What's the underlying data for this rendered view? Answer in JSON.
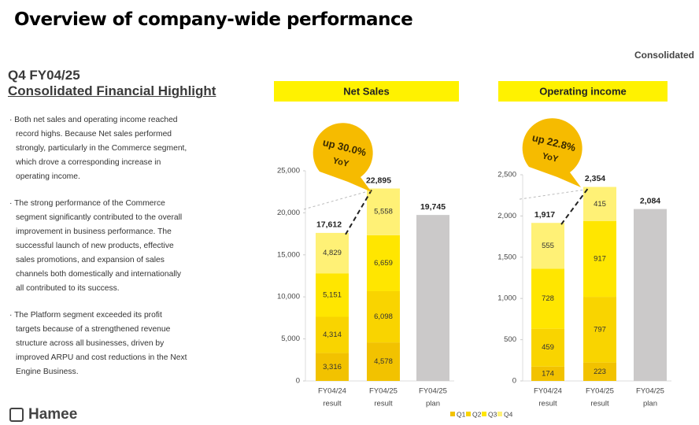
{
  "title": "Overview of company-wide performance",
  "scope": "Consolidated",
  "heading": {
    "line1": "Q4 FY04/25",
    "line2": "Consolidated Financial Highlight"
  },
  "bullets": [
    "Both net sales and operating income reached record highs. Because Net sales performed strongly, particularly in the Commerce segment, which drove a corresponding increase in operating income.",
    "The strong performance of the Commerce segment significantly contributed to the overall improvement in business performance. The successful launch of new products, effective sales promotions, and expansion of sales channels both domestically and internationally all contributed to its success.",
    "The Platform segment exceeded its profit targets because of a strengthened revenue structure across all businesses, driven by improved ARPU and cost reductions in the Next Engine Business."
  ],
  "logo": "Hamee",
  "chart_data": [
    {
      "type": "stacked_bar",
      "title": "Net Sales",
      "categories": [
        [
          "FY04/24",
          "result"
        ],
        [
          "FY04/25",
          "result"
        ],
        [
          "FY04/25",
          "plan"
        ]
      ],
      "series": [
        {
          "name": "Q1",
          "color": "#f2c200",
          "values": [
            3316,
            4578,
            null
          ],
          "value_labels": [
            "3,316",
            "4,578",
            null
          ]
        },
        {
          "name": "Q2",
          "color": "#f9d400",
          "values": [
            4314,
            6098,
            null
          ],
          "value_labels": [
            "4,314",
            "6,098",
            null
          ]
        },
        {
          "name": "Q3",
          "color": "#ffe600",
          "values": [
            5151,
            6659,
            null
          ],
          "value_labels": [
            "5,151",
            "6,659",
            null
          ]
        },
        {
          "name": "Q4",
          "color": "#fff176",
          "values": [
            4829,
            5558,
            null
          ],
          "value_labels": [
            "4,829",
            "5,558",
            null
          ]
        }
      ],
      "totals": {
        "values": [
          17612,
          22895,
          19745
        ],
        "value_labels": [
          "17,612",
          "22,895",
          "19,745"
        ]
      },
      "plan_color": "#cbc9c9",
      "annotation": {
        "text": "up 30.0%",
        "sub": "YoY"
      },
      "ylim": [
        0,
        25000
      ],
      "yticks": [
        0,
        {
          "value": 5000,
          "label": "5,000"
        },
        {
          "value": 10000,
          "label": "10,000"
        },
        {
          "value": 15000,
          "label": "15,000"
        },
        {
          "value": 20000,
          "label": "20,000"
        },
        {
          "value": 25000,
          "label": "25,000"
        }
      ]
    },
    {
      "type": "stacked_bar",
      "title": "Operating income",
      "categories": [
        [
          "FY04/24",
          "result"
        ],
        [
          "FY04/25",
          "result"
        ],
        [
          "FY04/25",
          "plan"
        ]
      ],
      "series": [
        {
          "name": "Q1",
          "color": "#f2c200",
          "values": [
            174,
            223,
            null
          ]
        },
        {
          "name": "Q2",
          "color": "#f9d400",
          "values": [
            459,
            797,
            null
          ]
        },
        {
          "name": "Q3",
          "color": "#ffe600",
          "values": [
            728,
            917,
            null
          ]
        },
        {
          "name": "Q4",
          "color": "#fff176",
          "values": [
            555,
            415,
            null
          ]
        }
      ],
      "totals": {
        "values": [
          1917,
          2354,
          2084
        ],
        "value_labels": [
          "1,917",
          "2,354",
          "2,084"
        ]
      },
      "plan_color": "#cbc9c9",
      "annotation": {
        "text": "up 22.8%",
        "sub": "YoY"
      },
      "ylim": [
        0,
        2500
      ],
      "yticks": [
        0,
        500,
        {
          "value": 1000,
          "label": "1,000"
        },
        {
          "value": 1500,
          "label": "1,500"
        },
        {
          "value": 2000,
          "label": "2,000"
        },
        {
          "value": 2500,
          "label": "2,500"
        }
      ]
    }
  ]
}
